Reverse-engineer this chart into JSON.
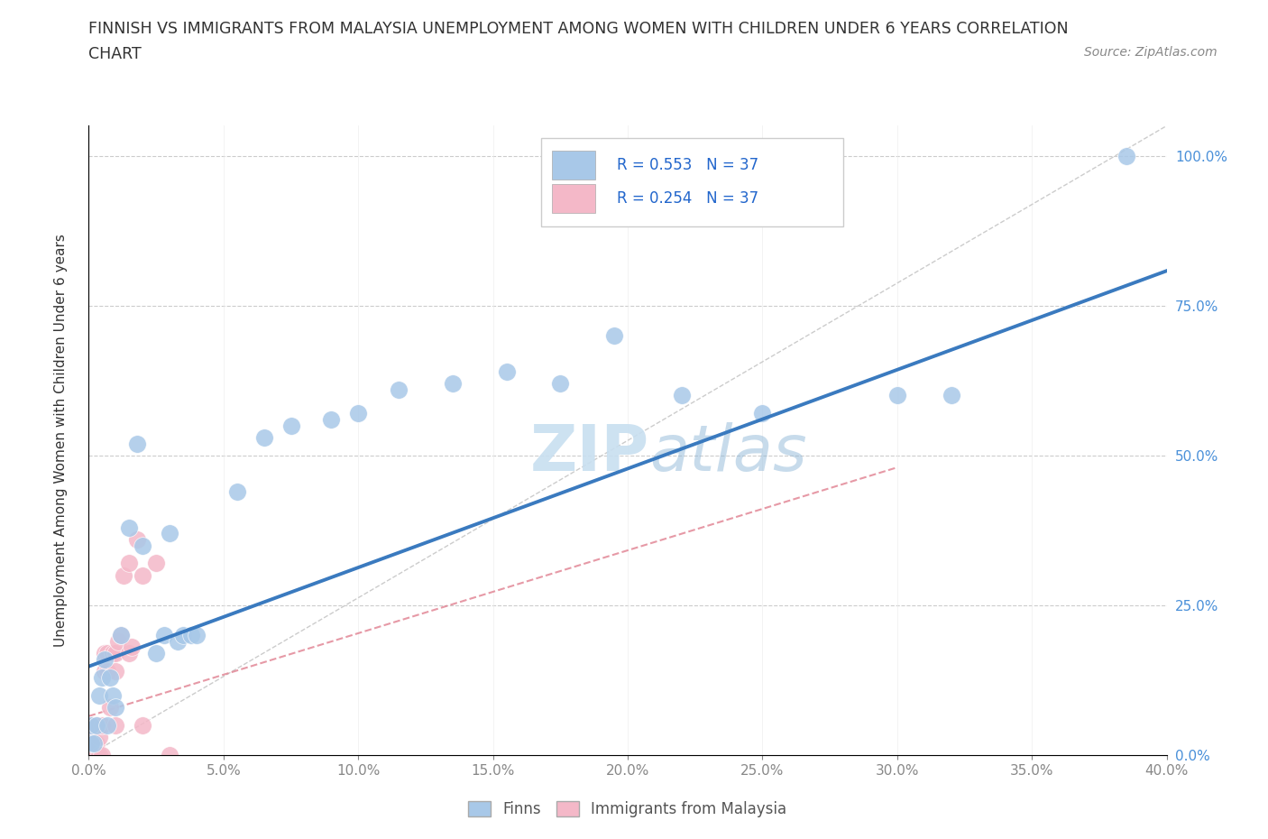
{
  "title_line1": "FINNISH VS IMMIGRANTS FROM MALAYSIA UNEMPLOYMENT AMONG WOMEN WITH CHILDREN UNDER 6 YEARS CORRELATION",
  "title_line2": "CHART",
  "source": "Source: ZipAtlas.com",
  "ylabel_label": "Unemployment Among Women with Children Under 6 years",
  "legend_finns": "Finns",
  "legend_immigrants": "Immigrants from Malaysia",
  "R_finns": "R = 0.553",
  "N_finns": "N = 37",
  "R_immigrants": "R = 0.254",
  "N_immigrants": "N = 37",
  "finns_color": "#a8c8e8",
  "immigrants_color": "#f4b8c8",
  "regression_line_color": "#3a7abf",
  "immigrants_line_color": "#e08090",
  "dashed_line_color": "#cccccc",
  "watermark_color": "#c8dff0",
  "xlim": [
    0,
    0.4
  ],
  "ylim": [
    0,
    1.05
  ],
  "finns_x": [
    0.001,
    0.001,
    0.002,
    0.003,
    0.004,
    0.005,
    0.006,
    0.007,
    0.008,
    0.009,
    0.01,
    0.012,
    0.015,
    0.018,
    0.02,
    0.025,
    0.028,
    0.03,
    0.033,
    0.035,
    0.038,
    0.04,
    0.055,
    0.065,
    0.075,
    0.09,
    0.1,
    0.115,
    0.135,
    0.155,
    0.175,
    0.195,
    0.22,
    0.25,
    0.3,
    0.32,
    0.385
  ],
  "finns_y": [
    0.02,
    0.05,
    0.02,
    0.05,
    0.1,
    0.13,
    0.16,
    0.05,
    0.13,
    0.1,
    0.08,
    0.2,
    0.38,
    0.52,
    0.35,
    0.17,
    0.2,
    0.37,
    0.19,
    0.2,
    0.2,
    0.2,
    0.44,
    0.53,
    0.55,
    0.56,
    0.57,
    0.61,
    0.62,
    0.64,
    0.62,
    0.7,
    0.6,
    0.57,
    0.6,
    0.6,
    1.0
  ],
  "immigrants_x": [
    0.0,
    0.0,
    0.0,
    0.0,
    0.0,
    0.001,
    0.001,
    0.001,
    0.002,
    0.002,
    0.003,
    0.003,
    0.003,
    0.004,
    0.004,
    0.005,
    0.005,
    0.006,
    0.006,
    0.007,
    0.007,
    0.008,
    0.009,
    0.01,
    0.01,
    0.01,
    0.011,
    0.012,
    0.013,
    0.015,
    0.015,
    0.016,
    0.018,
    0.02,
    0.02,
    0.025,
    0.03
  ],
  "immigrants_y": [
    0.0,
    0.0,
    0.0,
    0.02,
    0.04,
    0.0,
    0.02,
    0.04,
    0.0,
    0.05,
    0.0,
    0.02,
    0.05,
    0.0,
    0.03,
    0.0,
    0.05,
    0.14,
    0.17,
    0.14,
    0.17,
    0.08,
    0.17,
    0.05,
    0.14,
    0.17,
    0.19,
    0.2,
    0.3,
    0.17,
    0.32,
    0.18,
    0.36,
    0.05,
    0.3,
    0.32,
    0.0
  ],
  "reg_line_x": [
    0.0,
    0.4
  ],
  "reg_line_y": [
    0.148,
    0.808
  ],
  "imm_reg_line_x": [
    0.0,
    0.3
  ],
  "imm_reg_line_y": [
    0.065,
    0.48
  ]
}
